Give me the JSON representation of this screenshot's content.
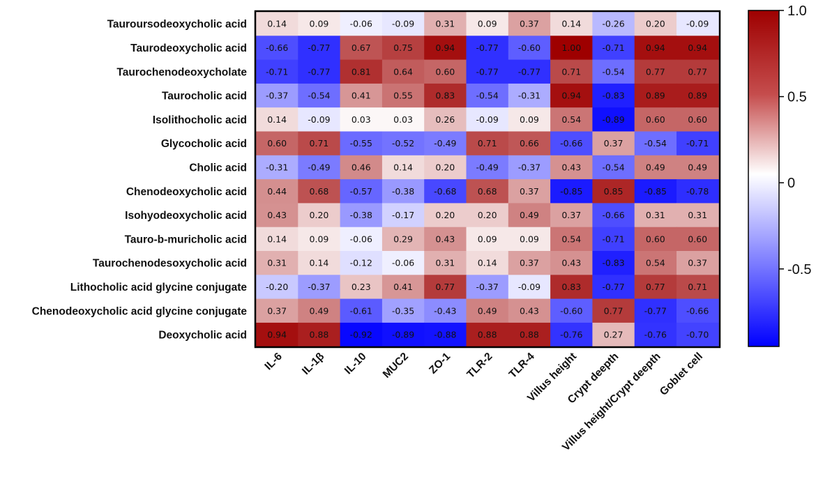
{
  "chart_data": {
    "type": "heatmap",
    "title": "",
    "rows": [
      "Tauroursodeoxycholic acid",
      "Taurodeoxycholic acid",
      "Taurochenodeoxycholate",
      "Taurocholic acid",
      "Isolithocholic acid",
      "Glycocholic acid",
      "Cholic acid",
      "Chenodeoxycholic acid",
      "Isohyodeoxycholic acid",
      "Tauro-b-muricholic acid",
      "Taurochenodesoxycholic acid",
      "Lithocholic acid glycine conjugate",
      "Chenodeoxycholic acid glycine conjugate",
      "Deoxycholic acid"
    ],
    "columns": [
      "IL-6",
      "IL-1β",
      "IL-10",
      "MUC2",
      "ZO-1",
      "TLR-2",
      "TLR-4",
      "Villus height",
      "Crypt deepth",
      "Villus height/Crypt deepth",
      "Goblet cell"
    ],
    "values": [
      [
        "0.14",
        "0.09",
        "-0.06",
        "-0.09",
        "0.31",
        "0.09",
        "0.37",
        "0.14",
        "-0.26",
        "0.20",
        "-0.09"
      ],
      [
        "-0.66",
        "-0.77",
        "0.67",
        "0.75",
        "0.94",
        "-0.77",
        "-0.60",
        "1.00",
        "-0.71",
        "0.94",
        "0.94"
      ],
      [
        "-0.71",
        "-0.77",
        "0.81",
        "0.64",
        "0.60",
        "-0.77",
        "-0.77",
        "0.71",
        "-0.54",
        "0.77",
        "0.77"
      ],
      [
        "-0.37",
        "-0.54",
        "0.41",
        "0.55",
        "0.83",
        "-0.54",
        "-0.31",
        "0.94",
        "-0.83",
        "0.89",
        "0.89"
      ],
      [
        "0.14",
        "-0.09",
        "0.03",
        "0.03",
        "0.26",
        "-0.09",
        "0.09",
        "0.54",
        "-0.89",
        "0.60",
        "0.60"
      ],
      [
        "0.60",
        "0.71",
        "-0.55",
        "-0.52",
        "-0.49",
        "0.71",
        "0.66",
        "-0.66",
        "0.37",
        "-0.54",
        "-0.71"
      ],
      [
        "-0.31",
        "-0.49",
        "0.46",
        "0.14",
        "0.20",
        "-0.49",
        "-0.37",
        "0.43",
        "-0.54",
        "0.49",
        "0.49"
      ],
      [
        "0.44",
        "0.68",
        "-0.57",
        "-0.38",
        "-0.68",
        "0.68",
        "0.37",
        "-0.85",
        "0.85",
        "-0.85",
        "-0.78"
      ],
      [
        "0.43",
        "0.20",
        "-0.38",
        "-0.17",
        "0.20",
        "0.20",
        "0.49",
        "0.37",
        "-0.66",
        "0.31",
        "0.31"
      ],
      [
        "0.14",
        "0.09",
        "-0.06",
        "0.29",
        "0.43",
        "0.09",
        "0.09",
        "0.54",
        "-0.71",
        "0.60",
        "0.60"
      ],
      [
        "0.31",
        "0.14",
        "-0.12",
        "-0.06",
        "0.31",
        "0.14",
        "0.37",
        "0.43",
        "-0.83",
        "0.54",
        "0.37"
      ],
      [
        "-0.20",
        "-0.37",
        "0.23",
        "0.41",
        "0.77",
        "-0.37",
        "-0.09",
        "0.83",
        "-0.77",
        "0.77",
        "0.71"
      ],
      [
        "0.37",
        "0.49",
        "-0.61",
        "-0.35",
        "-0.43",
        "0.49",
        "0.43",
        "-0.60",
        "0.77",
        "-0.77",
        "-0.66"
      ],
      [
        "0.94",
        "0.88",
        "-0.92",
        "-0.89",
        "-0.88",
        "0.88",
        "0.88",
        "-0.76",
        "0.27",
        "-0.76",
        "-0.70"
      ]
    ],
    "colorbar": {
      "range": [
        -0.95,
        1.0
      ],
      "ticks": [
        {
          "value": 1.0,
          "label": "1.0"
        },
        {
          "value": 0.5,
          "label": "0.5"
        },
        {
          "value": 0,
          "label": "0"
        },
        {
          "value": -0.5,
          "label": "-0.5"
        }
      ]
    },
    "colors": {
      "positive": "#9e0000",
      "neutral": "#ffffff",
      "negative": "#0000ff",
      "border": "#000000"
    }
  }
}
